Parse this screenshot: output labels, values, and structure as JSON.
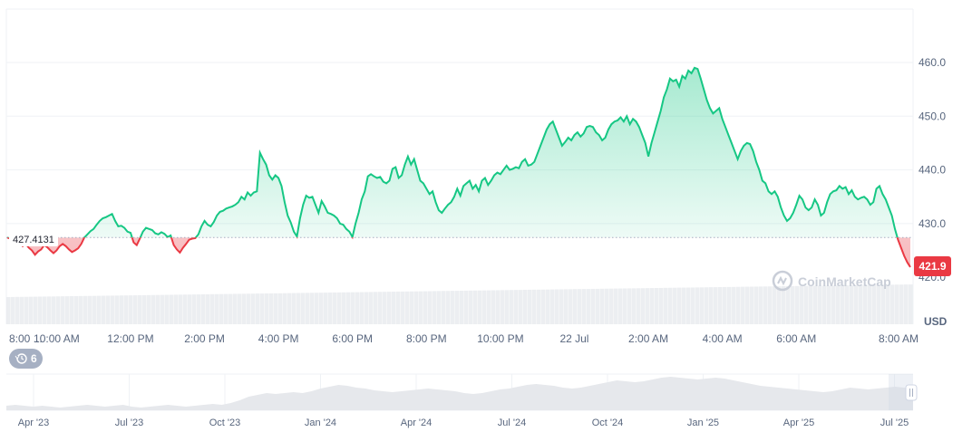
{
  "chart_data": {
    "type": "line",
    "ylim": [
      420,
      470
    ],
    "y_ticks": [
      "430.0",
      "440.0",
      "450.0",
      "460.0"
    ],
    "y_tick_values": [
      430,
      440,
      450,
      460
    ],
    "y_cut_tick": "420.0",
    "y_unit": "USD",
    "baseline_label": "427.4131",
    "baseline_value": 427.4131,
    "last_value_label": "421.9",
    "last_value": 421.9,
    "x_ticks": [
      "8:00 ...",
      "10:00 AM",
      "12:00 PM",
      "2:00 PM",
      "4:00 PM",
      "6:00 PM",
      "8:00 PM",
      "10:00 PM",
      "22 Jul",
      "2:00 AM",
      "4:00 AM",
      "6:00 AM",
      "8:00 AM"
    ],
    "x_tick_index": [
      0,
      16,
      40,
      64,
      88,
      112,
      136,
      160,
      184,
      208,
      232,
      256,
      280
    ],
    "series": [
      {
        "values": [
          427.4,
          427.2,
          427.0,
          426.0,
          426.5,
          425.8,
          426.2,
          425.5,
          425.0,
          424.2,
          424.8,
          425.2,
          426.0,
          425.6,
          425.0,
          424.5,
          425.0,
          425.8,
          426.2,
          425.8,
          425.2,
          424.7,
          425.0,
          425.4,
          426.2,
          427.4,
          428.0,
          428.6,
          429.0,
          429.8,
          430.5,
          431.0,
          431.2,
          431.5,
          431.8,
          430.5,
          429.5,
          429.6,
          429.2,
          428.5,
          428.3,
          426.5,
          426.0,
          427.2,
          428.5,
          429.2,
          429.0,
          428.8,
          428.2,
          428.0,
          428.4,
          428.1,
          427.5,
          427.8,
          426.0,
          425.2,
          424.6,
          425.5,
          426.2,
          427.0,
          427.2,
          427.3,
          428.0,
          429.5,
          430.5,
          429.8,
          429.5,
          430.3,
          431.5,
          432.2,
          432.4,
          432.8,
          433.0,
          433.2,
          433.5,
          434.0,
          435.0,
          434.5,
          435.8,
          435.2,
          435.8,
          436.0,
          443.2,
          442.0,
          441.0,
          439.0,
          438.2,
          439.0,
          438.5,
          437.0,
          434.0,
          431.5,
          430.2,
          428.5,
          427.6,
          431.0,
          433.5,
          435.2,
          434.8,
          435.0,
          433.5,
          432.0,
          434.2,
          433.2,
          432.0,
          431.8,
          431.5,
          431.0,
          430.0,
          429.8,
          429.0,
          428.5,
          427.5,
          430.0,
          432.0,
          434.5,
          436.0,
          438.8,
          439.2,
          438.8,
          438.5,
          438.7,
          437.8,
          437.5,
          438.0,
          440.2,
          440.5,
          438.5,
          439.0,
          441.0,
          442.5,
          441.0,
          442.0,
          440.0,
          438.0,
          437.5,
          436.5,
          435.5,
          436.0,
          434.0,
          432.5,
          432.0,
          432.8,
          433.5,
          434.0,
          435.0,
          436.5,
          435.2,
          437.0,
          437.5,
          438.0,
          436.5,
          437.2,
          436.0,
          438.0,
          438.5,
          437.2,
          438.0,
          439.0,
          439.5,
          439.2,
          440.0,
          440.8,
          440.0,
          440.2,
          440.5,
          440.3,
          441.5,
          442.0,
          440.8,
          441.0,
          441.5,
          443.0,
          444.5,
          446.0,
          447.5,
          448.5,
          449.0,
          447.5,
          446.0,
          444.5,
          445.2,
          446.0,
          445.5,
          446.5,
          447.0,
          446.2,
          446.8,
          448.0,
          448.2,
          448.0,
          447.0,
          446.5,
          445.5,
          446.0,
          447.5,
          448.5,
          449.0,
          449.2,
          449.8,
          449.0,
          450.0,
          448.5,
          449.5,
          449.0,
          448.0,
          446.5,
          445.0,
          442.5,
          445.0,
          447.0,
          449.0,
          451.0,
          453.5,
          455.0,
          457.0,
          456.5,
          456.8,
          455.5,
          457.5,
          457.0,
          458.5,
          458.0,
          459.0,
          458.8,
          457.0,
          455.0,
          453.0,
          451.5,
          450.5,
          451.0,
          451.5,
          449.5,
          448.0,
          446.5,
          445.0,
          443.5,
          442.0,
          443.5,
          444.5,
          445.0,
          444.8,
          443.5,
          441.5,
          440.0,
          438.0,
          437.5,
          436.0,
          435.5,
          436.0,
          435.0,
          433.0,
          431.5,
          430.5,
          431.0,
          432.0,
          433.5,
          435.2,
          434.5,
          433.0,
          432.5,
          433.0,
          434.5,
          433.5,
          431.5,
          432.0,
          434.0,
          435.5,
          436.0,
          436.2,
          437.0,
          436.5,
          436.8,
          435.5,
          436.2,
          435.0,
          434.5,
          434.8,
          435.0,
          434.5,
          433.5,
          434.0,
          436.5,
          437.0,
          435.5,
          434.5,
          433.0,
          431.5,
          429.0,
          427.0,
          425.5,
          424.0,
          422.8,
          421.9
        ]
      }
    ],
    "volume_band": "gray",
    "navigator": {
      "x_ticks": [
        "Apr '23",
        "Jul '23",
        "Oct '23",
        "Jan '24",
        "Apr '24",
        "Jul '24",
        "Oct '24",
        "Jan '25",
        "Apr '25",
        "Jul '25"
      ],
      "values": [
        410,
        411,
        410,
        409,
        410,
        409,
        408,
        409,
        410,
        411,
        410,
        409,
        410,
        411,
        409,
        408,
        409,
        410,
        411,
        410,
        409,
        410,
        411,
        412,
        411,
        413,
        416,
        420,
        422,
        424,
        423,
        424,
        425,
        424,
        426,
        429,
        431,
        433,
        432,
        430,
        429,
        427,
        426,
        425,
        426,
        427,
        428,
        429,
        428,
        427,
        426,
        424,
        423,
        424,
        426,
        428,
        429,
        431,
        433,
        434,
        433,
        432,
        430,
        429,
        430,
        432,
        434,
        436,
        438,
        437,
        436,
        437,
        439,
        441,
        442,
        441,
        440,
        439,
        440,
        441,
        440,
        438,
        436,
        434,
        432,
        431,
        430,
        429,
        428,
        427,
        426,
        425,
        426,
        428,
        430,
        429,
        428,
        429,
        430,
        431,
        430,
        429
      ]
    }
  },
  "badges": {
    "history_count": "6"
  },
  "brand": {
    "name": "CoinMarketCap"
  },
  "colors": {
    "up": "#16c784",
    "down": "#ea3943",
    "grid": "#eff2f5",
    "volume": "#e6e8ec",
    "navigator": "#e6e8ec"
  }
}
